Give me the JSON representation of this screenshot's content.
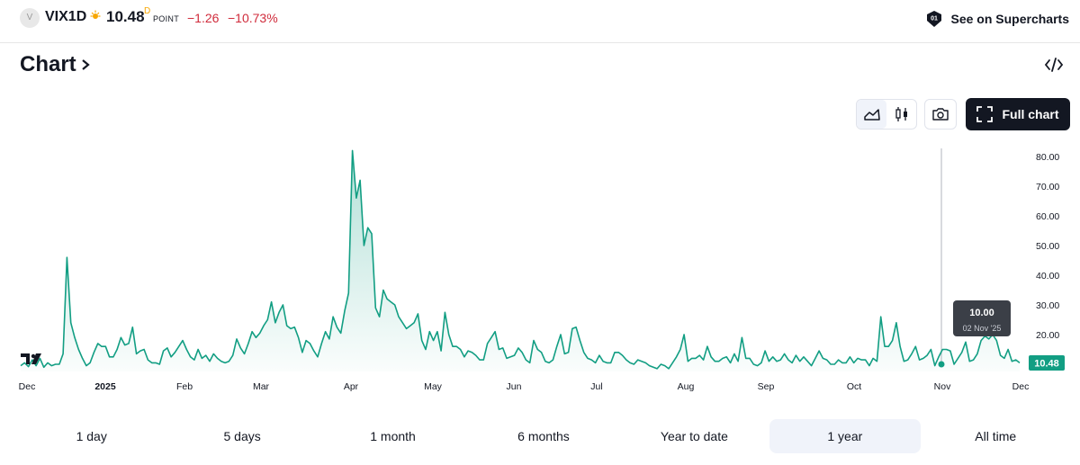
{
  "header": {
    "symbol_logo": "V",
    "symbol": "VIX1D",
    "market_status_icon": "sun-icon",
    "price": "10.48",
    "price_superscript": "D",
    "unit": "POINT",
    "change": "−1.26",
    "change_percent": "−10.73%",
    "supercharts_label": "See on Supercharts"
  },
  "section": {
    "title": "Chart",
    "chevron_icon": "chevron-right-icon",
    "embed_icon": "code-icon"
  },
  "toolbar": {
    "line_icon": "area-chart-icon",
    "candles_icon": "candlestick-icon",
    "snapshot_icon": "camera-icon",
    "full_chart_icon": "fullscreen-icon",
    "full_chart_label": "Full chart"
  },
  "colors": {
    "line": "#129e83",
    "down": "#d02b3b",
    "accent": "#131722"
  },
  "chart_data": {
    "type": "area",
    "ylim": [
      5,
      85
    ],
    "y_ticks": [
      "80.00",
      "70.00",
      "60.00",
      "50.00",
      "40.00",
      "30.00",
      "20.00"
    ],
    "x_labels": [
      "Dec",
      "2025",
      "Feb",
      "Mar",
      "Apr",
      "May",
      "Jun",
      "Jul",
      "Aug",
      "Sep",
      "Oct",
      "Nov",
      "Dec"
    ],
    "last_value_label": "10.48",
    "tooltip": {
      "value": "10.00",
      "date": "02 Nov '25"
    },
    "series": [
      {
        "values": [
          9.5,
          10.5,
          9.2,
          11.5,
          9.5,
          12,
          9,
          10.5,
          9.5,
          10,
          10,
          13.5,
          46,
          24,
          19,
          15,
          12,
          9.5,
          10.5,
          14,
          17,
          16,
          16,
          12.5,
          12.5,
          15,
          19,
          16.5,
          17,
          22.5,
          13.5,
          14.5,
          15,
          11.5,
          10.5,
          10.5,
          10,
          14.5,
          15.5,
          12.5,
          14,
          16,
          18,
          15,
          12.5,
          11.5,
          15,
          12,
          13,
          11,
          13.5,
          12,
          11,
          10.5,
          11,
          13,
          18.5,
          15.5,
          13.5,
          17,
          21,
          19,
          20.5,
          23,
          25,
          31,
          24,
          27.5,
          30,
          23,
          22,
          22.5,
          19,
          14,
          18,
          17,
          14.5,
          12.5,
          17,
          21,
          18.5,
          26,
          22.5,
          20.5,
          28,
          34,
          82,
          66,
          72,
          50,
          56,
          54,
          29,
          26,
          35,
          32,
          31,
          30,
          26,
          24,
          22,
          23,
          24,
          27,
          18,
          15,
          21,
          18,
          21,
          14.5,
          27.5,
          20,
          16,
          16,
          15,
          12.5,
          14.5,
          14,
          13,
          11.5,
          11.5,
          17,
          19,
          21,
          15,
          15.5,
          12,
          12.5,
          13,
          15.5,
          14,
          11.5,
          10.5,
          18,
          15,
          14,
          11,
          10.5,
          11.5,
          16,
          20,
          13.5,
          14,
          22,
          22.5,
          18,
          14,
          12,
          11.5,
          10.5,
          13,
          11,
          10.5,
          10.5,
          14,
          14,
          13,
          11.5,
          10.5,
          10,
          11.5,
          11,
          10.5,
          9.5,
          9,
          8.5,
          10,
          9.5,
          8.5,
          10.5,
          12.5,
          15,
          20,
          11,
          12,
          12,
          13,
          11.5,
          16,
          12.5,
          11,
          11,
          12,
          12.5,
          10.5,
          13.5,
          11,
          19,
          12,
          12,
          10,
          9.5,
          10.5,
          14.5,
          11,
          12.5,
          11,
          11.5,
          13.5,
          11.5,
          10.5,
          13,
          11,
          12.5,
          11,
          9.5,
          12,
          14.5,
          12,
          11.5,
          10,
          10,
          11.5,
          10.5,
          10.5,
          12.5,
          10.5,
          12,
          11.5,
          11.5,
          9.5,
          12,
          11,
          26,
          16,
          16,
          18,
          24,
          16,
          11,
          11.5,
          13.5,
          16,
          11.5,
          12,
          13,
          15,
          9.5,
          12.5,
          15,
          15,
          14.5,
          10,
          12,
          14,
          17.5,
          11,
          11.5,
          13.5,
          18,
          19.5,
          18.5,
          20,
          18,
          13,
          12,
          15,
          11,
          11.5,
          10.5
        ]
      }
    ]
  },
  "timeframes": {
    "items": [
      "1 day",
      "5 days",
      "1 month",
      "6 months",
      "Year to date",
      "1 year",
      "All time"
    ],
    "active": "1 year"
  }
}
